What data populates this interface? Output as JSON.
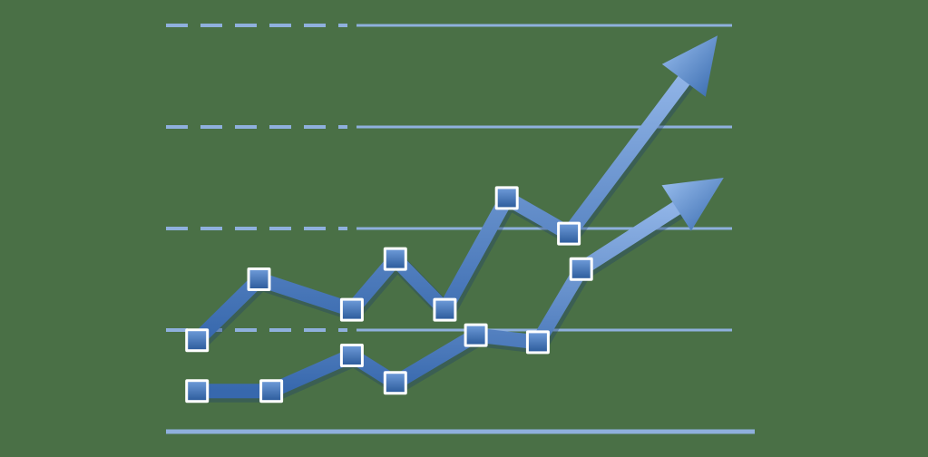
{
  "chart_data": {
    "type": "line",
    "title": "",
    "xlabel": "",
    "ylabel": "",
    "grid": true,
    "legend": "none",
    "x": [
      1,
      2,
      3,
      4,
      5,
      6,
      7
    ],
    "xlim": [
      0.5,
      10
    ],
    "ylim": [
      0,
      4
    ],
    "gridlines": [
      1,
      2,
      3,
      4
    ],
    "series": [
      {
        "x": [
          1,
          2,
          3.5,
          4.2,
          5,
          6,
          7
        ],
        "values": [
          0.9,
          1.5,
          1.2,
          1.7,
          1.2,
          2.3,
          1.95
        ],
        "arrow_to": [
          9.4,
          3.9
        ]
      },
      {
        "x": [
          1,
          2.2,
          3.5,
          4.2,
          5.5,
          6.5,
          7.2
        ],
        "values": [
          0.4,
          0.4,
          0.75,
          0.48,
          0.95,
          0.88,
          1.6
        ],
        "arrow_to": [
          9.5,
          2.5
        ]
      }
    ],
    "colors": {
      "background": "#4a7046",
      "gridline": "#8fb0dd",
      "line_light": "#8fb3e6",
      "line_dark": "#3768ad",
      "marker_border": "#ffffff"
    }
  }
}
